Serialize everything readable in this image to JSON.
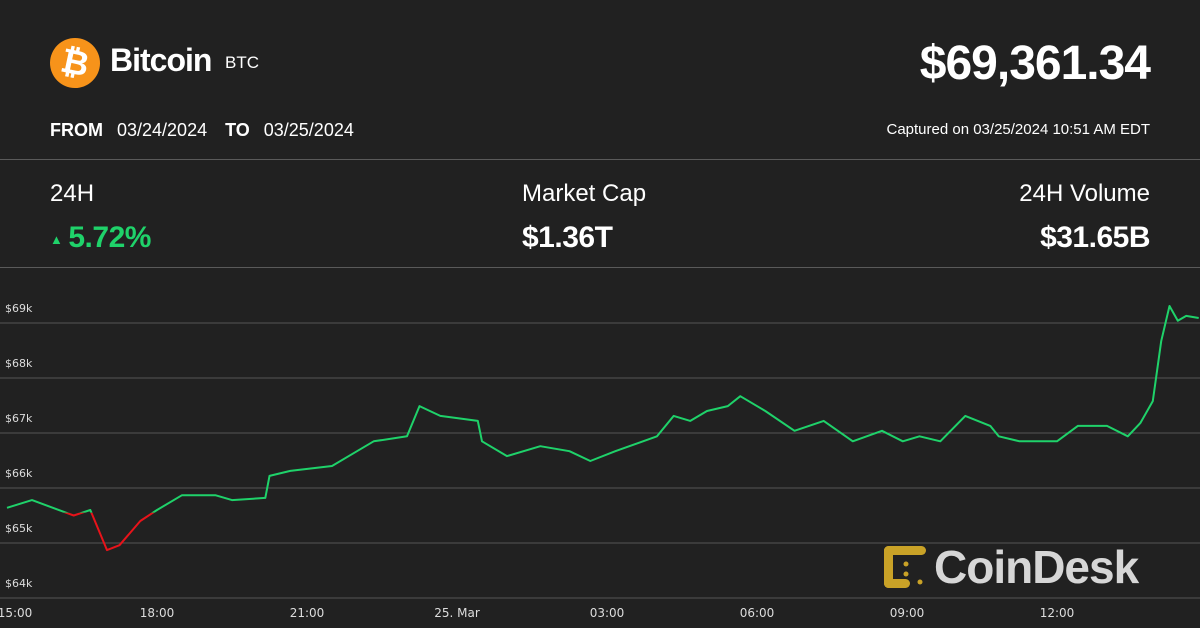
{
  "header": {
    "coin_name": "Bitcoin",
    "symbol": "BTC",
    "price": "$69,361.34",
    "logo_icon": "bitcoin-icon",
    "logo_color": "#f7931a"
  },
  "range": {
    "from_label": "FROM",
    "from": "03/24/2024",
    "to_label": "TO",
    "to": "03/25/2024",
    "captured": "Captured on 03/25/2024 10:51 AM EDT"
  },
  "stats": {
    "change_label": "24H",
    "change_value": "5.72%",
    "change_icon": "triangle-up-icon",
    "mcap_label": "Market Cap",
    "mcap_value": "$1.36T",
    "volume_label": "24H Volume",
    "volume_value": "$31.65B"
  },
  "watermark": {
    "text": "CoinDesk",
    "color": "#c9a227"
  },
  "colors": {
    "up": "#1fd26a",
    "down": "#e8131a",
    "background": "#212121"
  },
  "chart_data": {
    "type": "line",
    "title": "",
    "xlabel": "",
    "ylabel": "",
    "ylim": [
      63800,
      69600
    ],
    "yticks": [
      64000,
      65000,
      66000,
      67000,
      68000,
      69000
    ],
    "ytick_labels": [
      "$64k",
      "$65k",
      "$66k",
      "$67k",
      "$68k",
      "$69k"
    ],
    "xtick_labels": [
      {
        "t": "2024-03-24T15:00",
        "label": "15:00"
      },
      {
        "t": "2024-03-24T18:00",
        "label": "18:00"
      },
      {
        "t": "2024-03-24T21:00",
        "label": "21:00"
      },
      {
        "t": "2024-03-25T00:00",
        "label": "25. Mar"
      },
      {
        "t": "2024-03-25T03:00",
        "label": "03:00"
      },
      {
        "t": "2024-03-25T06:00",
        "label": "06:00"
      },
      {
        "t": "2024-03-25T09:00",
        "label": "09:00"
      },
      {
        "t": "2024-03-25T12:00",
        "label": "12:00"
      }
    ],
    "grid": true,
    "color_threshold": 65550,
    "points": [
      [
        "2024-03-24T15:00",
        65640
      ],
      [
        "2024-03-24T15:30",
        65780
      ],
      [
        "2024-03-24T16:20",
        65500
      ],
      [
        "2024-03-24T16:40",
        65600
      ],
      [
        "2024-03-24T17:00",
        64870
      ],
      [
        "2024-03-24T17:15",
        64960
      ],
      [
        "2024-03-24T17:40",
        65400
      ],
      [
        "2024-03-24T18:00",
        65600
      ],
      [
        "2024-03-24T18:30",
        65870
      ],
      [
        "2024-03-24T19:10",
        65870
      ],
      [
        "2024-03-24T19:30",
        65780
      ],
      [
        "2024-03-24T20:10",
        65820
      ],
      [
        "2024-03-24T20:15",
        66220
      ],
      [
        "2024-03-24T20:40",
        66310
      ],
      [
        "2024-03-24T21:30",
        66400
      ],
      [
        "2024-03-24T22:00",
        66670
      ],
      [
        "2024-03-24T22:20",
        66850
      ],
      [
        "2024-03-24T23:00",
        66940
      ],
      [
        "2024-03-24T23:15",
        67490
      ],
      [
        "2024-03-24T23:40",
        67310
      ],
      [
        "2024-03-25T00:25",
        67220
      ],
      [
        "2024-03-25T00:30",
        66850
      ],
      [
        "2024-03-25T01:00",
        66580
      ],
      [
        "2024-03-25T01:40",
        66760
      ],
      [
        "2024-03-25T02:15",
        66670
      ],
      [
        "2024-03-25T02:40",
        66490
      ],
      [
        "2024-03-25T03:10",
        66670
      ],
      [
        "2024-03-25T04:00",
        66940
      ],
      [
        "2024-03-25T04:20",
        67310
      ],
      [
        "2024-03-25T04:40",
        67220
      ],
      [
        "2024-03-25T05:00",
        67400
      ],
      [
        "2024-03-25T05:25",
        67490
      ],
      [
        "2024-03-25T05:40",
        67670
      ],
      [
        "2024-03-25T06:10",
        67400
      ],
      [
        "2024-03-25T06:45",
        67040
      ],
      [
        "2024-03-25T07:20",
        67220
      ],
      [
        "2024-03-25T07:55",
        66850
      ],
      [
        "2024-03-25T08:30",
        67040
      ],
      [
        "2024-03-25T08:55",
        66850
      ],
      [
        "2024-03-25T09:15",
        66940
      ],
      [
        "2024-03-25T09:40",
        66850
      ],
      [
        "2024-03-25T10:10",
        67310
      ],
      [
        "2024-03-25T10:40",
        67130
      ],
      [
        "2024-03-25T10:50",
        66940
      ],
      [
        "2024-03-25T11:15",
        66850
      ],
      [
        "2024-03-25T12:00",
        66850
      ],
      [
        "2024-03-25T12:25",
        67130
      ],
      [
        "2024-03-25T13:00",
        67130
      ],
      [
        "2024-03-25T13:25",
        66940
      ],
      [
        "2024-03-25T13:40",
        67180
      ],
      [
        "2024-03-25T13:55",
        67580
      ],
      [
        "2024-03-25T14:05",
        68670
      ],
      [
        "2024-03-25T14:15",
        69310
      ],
      [
        "2024-03-25T14:25",
        69040
      ],
      [
        "2024-03-25T14:35",
        69130
      ],
      [
        "2024-03-25T14:50",
        69090
      ]
    ]
  }
}
